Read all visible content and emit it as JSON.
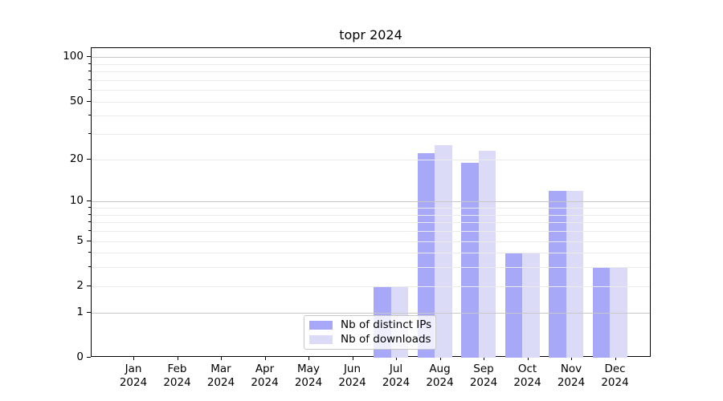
{
  "chart_data": {
    "type": "bar",
    "title": "topr 2024",
    "categories": [
      "Jan 2024",
      "Feb 2024",
      "Mar 2024",
      "Apr 2024",
      "May 2024",
      "Jun 2024",
      "Jul 2024",
      "Aug 2024",
      "Sep 2024",
      "Oct 2024",
      "Nov 2024",
      "Dec 2024"
    ],
    "series": [
      {
        "name": "Nb of distinct IPs",
        "key": "ips",
        "color": "#a8a8f8",
        "values": [
          0,
          0,
          0,
          0,
          0,
          0,
          2,
          22,
          19,
          4,
          12,
          3
        ]
      },
      {
        "name": "Nb of downloads",
        "key": "downloads",
        "color": "#dbdbf8",
        "values": [
          0,
          0,
          0,
          0,
          0,
          0,
          2,
          25,
          23,
          4,
          12,
          3
        ]
      }
    ],
    "xlabel": "",
    "ylabel": "",
    "yscale": "log1p",
    "ylim": [
      0,
      115
    ],
    "y_ticks_labeled": [
      0,
      1,
      2,
      5,
      10,
      20,
      50,
      100
    ],
    "grid_major": [
      1,
      10,
      100
    ],
    "grid_minor": [
      2,
      3,
      4,
      5,
      6,
      7,
      8,
      9,
      20,
      30,
      40,
      50,
      60,
      70,
      80,
      90
    ],
    "grid": true,
    "legend_position": "lower-center-inside"
  },
  "colors": {
    "bar_ips": "#a8a8f8",
    "bar_downloads": "#dbdbf8",
    "grid_minor": "#ebebeb",
    "grid_major": "#c8c8c8",
    "axis_spine": "#000000",
    "text": "#000000",
    "legend_border": "#c8c8c8",
    "legend_bg": "rgba(255,255,255,0.8)"
  }
}
